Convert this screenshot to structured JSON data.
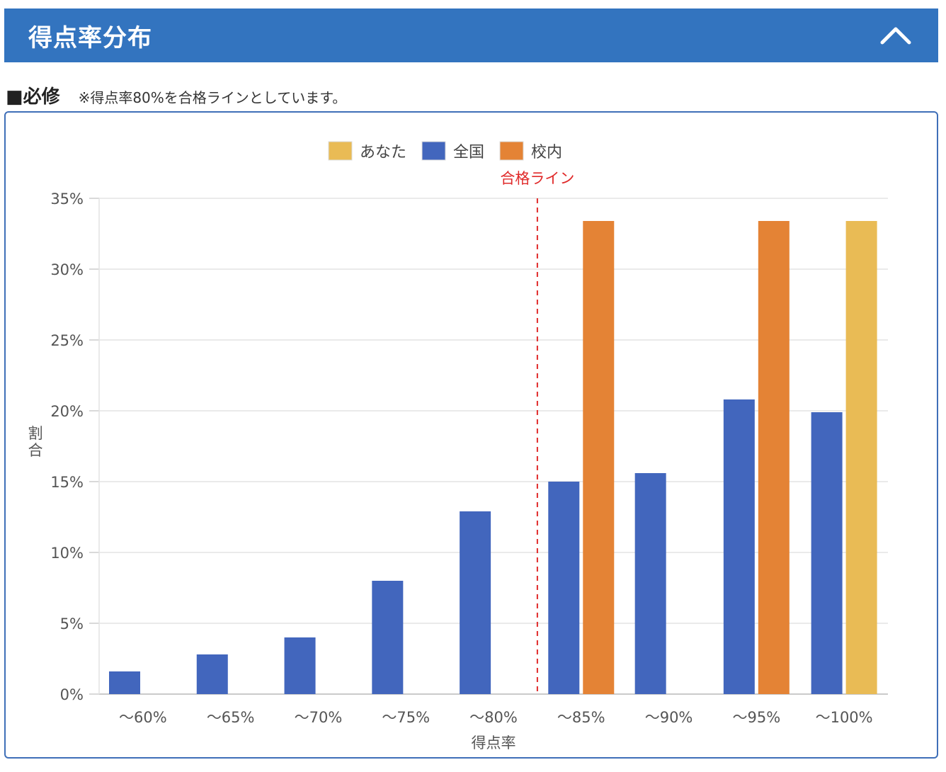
{
  "header": {
    "title": "得点率分布"
  },
  "section": {
    "title": "■必修",
    "note": "※得点率80%を合格ラインとしています。"
  },
  "chart_data": {
    "type": "bar",
    "categories": [
      "〜60%",
      "〜65%",
      "〜70%",
      "〜75%",
      "〜80%",
      "〜85%",
      "〜90%",
      "〜95%",
      "〜100%"
    ],
    "series": [
      {
        "name": "あなた",
        "color": "#e9bb55",
        "values": [
          0,
          0,
          0,
          0,
          0,
          0,
          0,
          0,
          33.4
        ]
      },
      {
        "name": "全国",
        "color": "#4266bd",
        "values": [
          1.6,
          2.8,
          4.0,
          8.0,
          12.9,
          15.0,
          15.6,
          20.8,
          19.9
        ]
      },
      {
        "name": "校内",
        "color": "#e48335",
        "values": [
          0,
          0,
          0,
          0,
          0,
          33.4,
          0,
          33.4,
          0
        ]
      }
    ],
    "ylim": [
      0,
      35
    ],
    "yticks": [
      0,
      5,
      10,
      15,
      20,
      25,
      30,
      35
    ],
    "ytick_labels": [
      "0%",
      "5%",
      "10%",
      "15%",
      "20%",
      "25%",
      "30%",
      "35%"
    ],
    "xlabel": "得点率",
    "ylabel": "割合",
    "grid": true,
    "legend_position": "top-center",
    "pass_line": {
      "label": "合格ライン",
      "between": [
        "〜80%",
        "〜85%"
      ],
      "color": "#e02a2a"
    }
  }
}
